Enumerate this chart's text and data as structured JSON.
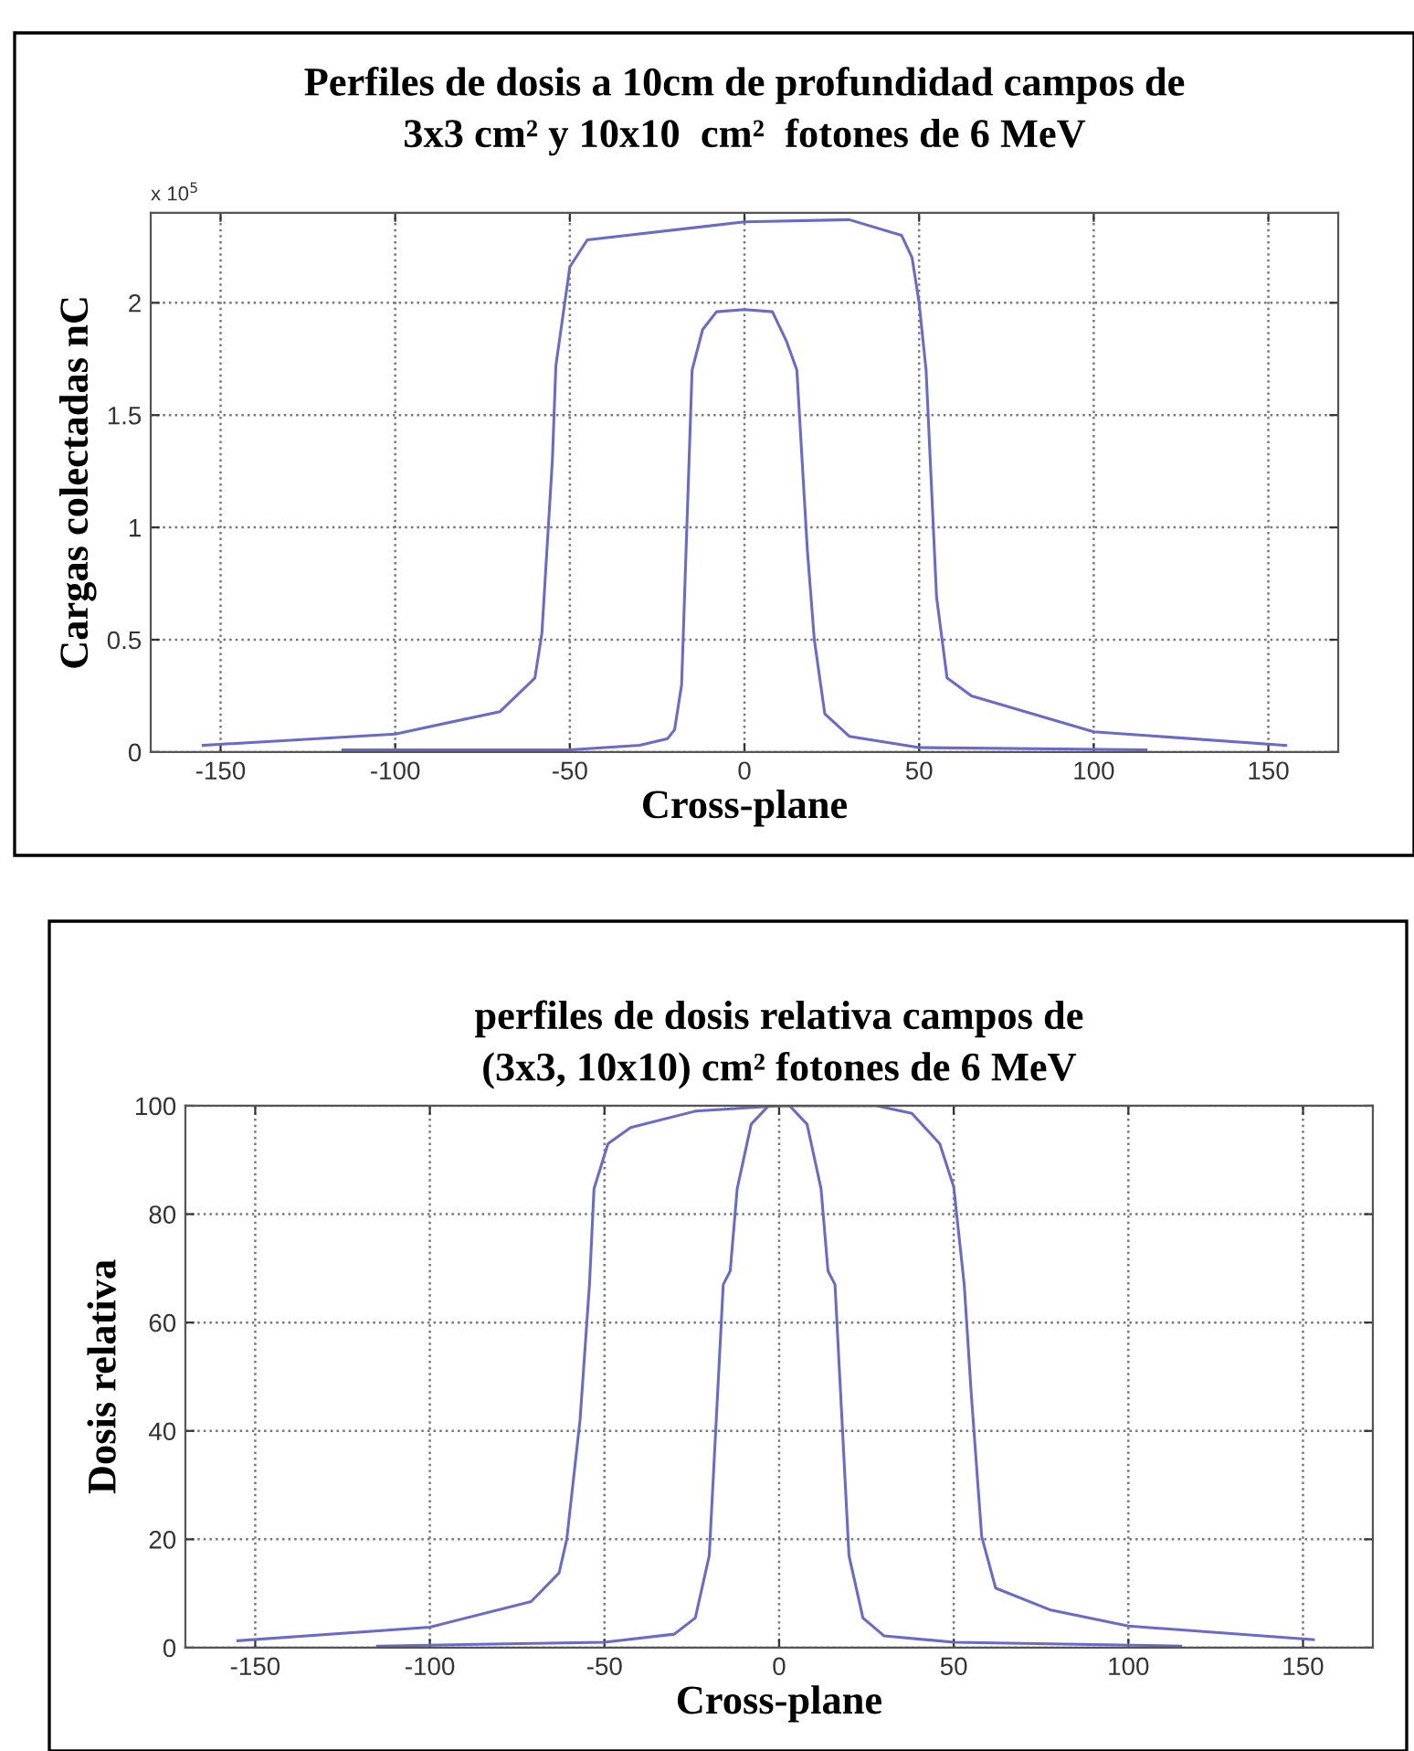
{
  "chart_data": [
    {
      "type": "line",
      "title": "Perfiles de dosis a 10cm de profundidad campos de\n3x3 cm² y 10x10  cm²  fotones de 6 MeV",
      "xlabel": "Cross-plane",
      "ylabel": "Cargas colectadas nC",
      "annotations": [
        "x 10$^{5}$"
      ],
      "xlim": [
        -170,
        170
      ],
      "xticks": [
        -150,
        -100,
        -50,
        0,
        50,
        100,
        150
      ],
      "ylim": [
        0,
        2.4
      ],
      "yticks": [
        0,
        0.5,
        1,
        1.5,
        2
      ],
      "grid": true,
      "series": [
        {
          "color": "#6a6ac8",
          "x": [
            -155,
            -100,
            -70,
            -60,
            -58,
            -55,
            -54,
            -50,
            -45,
            0,
            30,
            45,
            48,
            50,
            52,
            55,
            58,
            65,
            100,
            155
          ],
          "values": [
            0.03,
            0.08,
            0.18,
            0.33,
            0.53,
            1.3,
            1.72,
            2.16,
            2.28,
            2.36,
            2.37,
            2.3,
            2.2,
            2.0,
            1.7,
            0.69,
            0.33,
            0.25,
            0.09,
            0.03
          ]
        },
        {
          "color": "#6a6ac8",
          "x": [
            -115,
            -50,
            -30,
            -22,
            -20,
            -18,
            -15,
            -12,
            -8,
            0,
            8,
            12,
            15,
            18,
            20,
            23,
            30,
            50,
            115
          ],
          "values": [
            0.01,
            0.01,
            0.03,
            0.06,
            0.1,
            0.3,
            1.7,
            1.88,
            1.96,
            1.97,
            1.96,
            1.83,
            1.7,
            0.9,
            0.5,
            0.17,
            0.07,
            0.02,
            0.01
          ]
        }
      ]
    },
    {
      "type": "line",
      "title": "perfiles de dosis relativa campos de\n(3x3, 10x10) cm² fotones de 6 MeV",
      "xlabel": "Cross-plane",
      "ylabel": "Dosis relativa",
      "xlim": [
        -170,
        170
      ],
      "xticks": [
        -150,
        -100,
        -50,
        0,
        50,
        100,
        150
      ],
      "ylim": [
        0,
        100
      ],
      "yticks": [
        0,
        20,
        40,
        60,
        80,
        100
      ],
      "grid": true,
      "series": [
        {
          "color": "#6a6ac8",
          "x": [
            -155,
            -100,
            -71,
            -63,
            -60.8,
            -57,
            -54.3,
            -53,
            -49,
            -42.5,
            -24,
            0,
            28,
            38,
            46,
            50,
            53,
            55,
            58,
            62,
            77.5,
            100,
            153
          ],
          "values": [
            1.3,
            3.8,
            8.5,
            13.8,
            20,
            42,
            67,
            84.7,
            93,
            96,
            99,
            100,
            100,
            98.6,
            93,
            85,
            67,
            47,
            20.5,
            11,
            7,
            4,
            1.5
          ]
        },
        {
          "color": "#6a6ac8",
          "x": [
            -115,
            -50,
            -30,
            -24,
            -20,
            -18,
            -16,
            -14,
            -12,
            -8,
            -3,
            3,
            8,
            12,
            14,
            16,
            18,
            20,
            24,
            30,
            50,
            115
          ],
          "values": [
            0.3,
            1,
            2.5,
            5.5,
            17,
            42,
            67,
            69.5,
            84.7,
            96.6,
            100,
            100,
            96.6,
            84.7,
            69.5,
            67,
            42,
            17,
            5.5,
            2.2,
            1,
            0.3
          ]
        }
      ]
    }
  ]
}
